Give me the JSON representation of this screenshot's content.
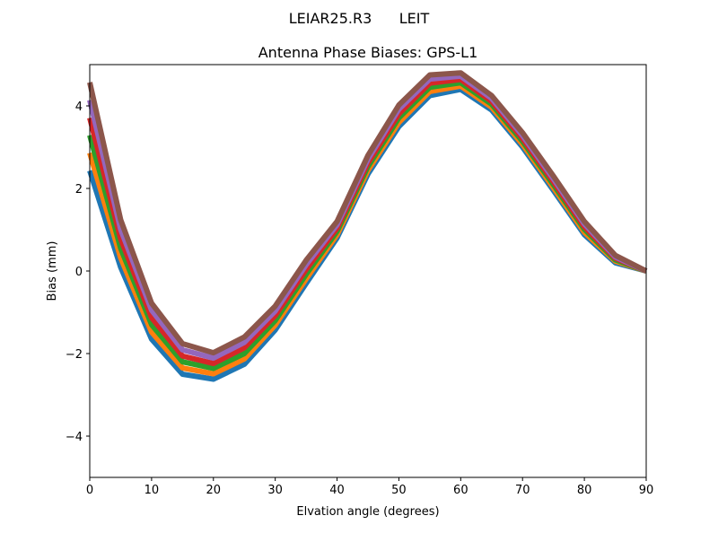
{
  "chart_data": {
    "type": "line",
    "suptitle": "LEIAR25.R3      LEIT",
    "title": "Antenna Phase Biases: GPS-L1",
    "xlabel": "Elvation angle (degrees)",
    "ylabel": "Bias (mm)",
    "xlim": [
      0,
      90
    ],
    "ylim": [
      -5,
      5
    ],
    "xticks": [
      0,
      10,
      20,
      30,
      40,
      50,
      60,
      70,
      80,
      90
    ],
    "yticks": [
      -4,
      -2,
      0,
      2,
      4
    ],
    "grid": false,
    "legend": "none",
    "x": [
      0,
      5,
      10,
      15,
      20,
      25,
      30,
      35,
      40,
      45,
      50,
      55,
      60,
      65,
      70,
      75,
      80,
      85,
      90
    ],
    "colors": [
      "#1f77b4",
      "#ff7f0e",
      "#2ca02c",
      "#d62728",
      "#9467bd",
      "#8c564b",
      "#e377c2",
      "#7f7f7f",
      "#bcbd22",
      "#17becf"
    ],
    "series": [
      {
        "values": [
          2.43,
          0.09,
          -1.65,
          -2.5,
          -2.62,
          -2.26,
          -1.43,
          -0.3,
          0.8,
          2.35,
          3.5,
          4.25,
          4.4,
          3.9,
          3.0,
          1.95,
          0.88,
          0.2,
          0
        ]
      },
      {
        "values": [
          2.86,
          0.32,
          -1.48,
          -2.35,
          -2.49,
          -2.13,
          -1.31,
          -0.19,
          0.88,
          2.44,
          3.6,
          4.35,
          4.48,
          3.97,
          3.07,
          2.02,
          0.94,
          0.24,
          0
        ]
      },
      {
        "values": [
          3.29,
          0.55,
          -1.3,
          -2.2,
          -2.36,
          -2.0,
          -1.2,
          -0.08,
          0.96,
          2.53,
          3.71,
          4.45,
          4.56,
          4.04,
          3.14,
          2.09,
          1.01,
          0.27,
          0
        ]
      },
      {
        "values": [
          3.71,
          0.78,
          -1.13,
          -2.06,
          -2.24,
          -1.86,
          -1.08,
          0.04,
          1.04,
          2.62,
          3.81,
          4.55,
          4.64,
          4.11,
          3.21,
          2.16,
          1.07,
          0.31,
          0
        ]
      },
      {
        "values": [
          4.14,
          1.01,
          -0.95,
          -1.91,
          -2.11,
          -1.73,
          -0.97,
          0.15,
          1.12,
          2.71,
          3.92,
          4.65,
          4.72,
          4.18,
          3.28,
          2.23,
          1.14,
          0.34,
          0
        ]
      },
      {
        "values": [
          4.57,
          1.24,
          -0.78,
          -1.76,
          -1.98,
          -1.6,
          -0.85,
          0.26,
          1.2,
          2.8,
          4.02,
          4.75,
          4.8,
          4.25,
          3.35,
          2.3,
          1.2,
          0.38,
          0
        ]
      }
    ]
  }
}
